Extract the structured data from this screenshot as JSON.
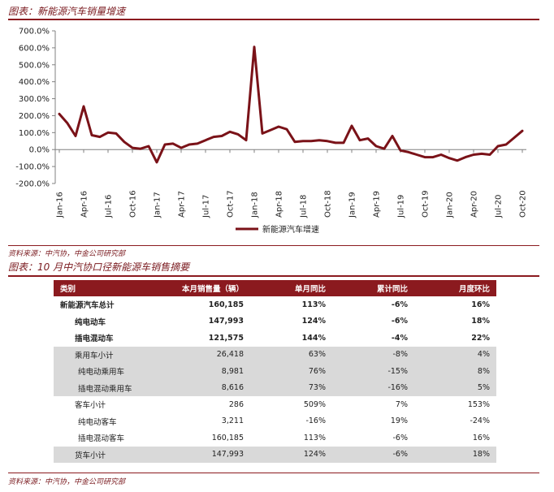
{
  "chart_title": "图表：新能源汽车销量增速",
  "source_1": "资料来源：中汽协，中金公司研究部",
  "table_title": "图表：10 月中汽协口径新能源车销售摘要",
  "source_2": "资料来源：中汽协，中金公司研究部",
  "colors": {
    "accent": "#8b1a1f",
    "line": "#7a1218",
    "grey_row": "#d9d9d9"
  },
  "chart_data": {
    "type": "line",
    "title": "",
    "xlabel": "",
    "ylabel": "",
    "ylim": [
      -200,
      700
    ],
    "yticks": [
      "700.0%",
      "600.0%",
      "500.0%",
      "400.0%",
      "300.0%",
      "200.0%",
      "100.0%",
      "0.0%",
      "-100.0%",
      "-200.0%"
    ],
    "xtick_labels": [
      "Jan-16",
      "Apr-16",
      "Jul-16",
      "Oct-16",
      "Jan-17",
      "Apr-17",
      "Jul-17",
      "Oct-17",
      "Jan-18",
      "Apr-18",
      "Jul-18",
      "Oct-18",
      "Jan-19",
      "Apr-19",
      "Jul-19",
      "Oct-19",
      "Jan-20",
      "Apr-20",
      "Jul-20",
      "Oct-20"
    ],
    "legend_position": "bottom-center",
    "grid": false,
    "series": [
      {
        "name": "新能源汽车增速",
        "values": [
          210,
          155,
          80,
          255,
          85,
          75,
          100,
          95,
          45,
          10,
          5,
          20,
          -75,
          30,
          35,
          10,
          30,
          35,
          55,
          75,
          80,
          105,
          90,
          55,
          605,
          95,
          115,
          135,
          120,
          45,
          50,
          50,
          55,
          50,
          40,
          40,
          140,
          55,
          65,
          20,
          5,
          80,
          -5,
          -15,
          -30,
          -45,
          -45,
          -30,
          -50,
          -65,
          -45,
          -30,
          -25,
          -30,
          20,
          30,
          70,
          110
        ]
      }
    ]
  },
  "table": {
    "headers": [
      "类别",
      "本月销售量（辆）",
      "单月同比",
      "累计同比",
      "月度环比"
    ],
    "rows": [
      [
        "新能源汽车总计",
        "160,185",
        "113%",
        "-6%",
        "16%"
      ],
      [
        "纯电动车",
        "147,993",
        "124%",
        "-6%",
        "18%"
      ],
      [
        "插电混动车",
        "121,575",
        "144%",
        "-4%",
        "22%"
      ],
      [
        "乘用车小计",
        "26,418",
        "63%",
        "-8%",
        "4%"
      ],
      [
        "纯电动乘用车",
        "8,981",
        "76%",
        "-15%",
        "8%"
      ],
      [
        "插电混动乘用车",
        "8,616",
        "73%",
        "-16%",
        "5%"
      ],
      [
        "客车小计",
        "286",
        "509%",
        "7%",
        "153%"
      ],
      [
        "纯电动客车",
        "3,211",
        "-16%",
        "19%",
        "-24%"
      ],
      [
        "插电混动客车",
        "160,185",
        "113%",
        "-6%",
        "16%"
      ],
      [
        "货车小计",
        "147,993",
        "124%",
        "-6%",
        "18%"
      ]
    ]
  }
}
